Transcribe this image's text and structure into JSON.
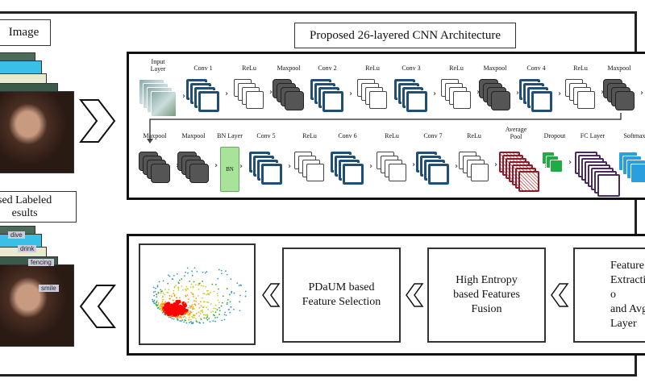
{
  "input_image": {
    "label": "Image"
  },
  "cnn_title": "Proposed 26-layered CNN Architecture",
  "labeled_results": {
    "label": "sed Labeled\nesults",
    "tags": [
      "dive",
      "drink",
      "fencing",
      "smile"
    ]
  },
  "top_row": [
    {
      "label": "Input\nLayer",
      "type": "input"
    },
    {
      "label": "Conv 1",
      "type": "conv"
    },
    {
      "label": "ReLu",
      "type": "relu"
    },
    {
      "label": "Maxpool",
      "type": "pool"
    },
    {
      "label": "Conv 2",
      "type": "conv"
    },
    {
      "label": "ReLu",
      "type": "relu"
    },
    {
      "label": "Conv 3",
      "type": "conv"
    },
    {
      "label": "ReLu",
      "type": "relu"
    },
    {
      "label": "Maxpool",
      "type": "pool"
    },
    {
      "label": "Conv 4",
      "type": "conv"
    },
    {
      "label": "ReLu",
      "type": "relu"
    },
    {
      "label": "Maxpool",
      "type": "pool"
    }
  ],
  "bottom_row": [
    {
      "label": "Maxpool",
      "type": "pool"
    },
    {
      "label": "Maxpool",
      "type": "pool"
    },
    {
      "label": "BN Layer",
      "type": "bn",
      "inner": "BN"
    },
    {
      "label": "Conv 5",
      "type": "conv"
    },
    {
      "label": "ReLu",
      "type": "relu"
    },
    {
      "label": "Conv 6",
      "type": "conv"
    },
    {
      "label": "ReLu",
      "type": "relu"
    },
    {
      "label": "Conv 7",
      "type": "conv"
    },
    {
      "label": "ReLu",
      "type": "relu"
    },
    {
      "label": "Average\nPool",
      "type": "avg"
    },
    {
      "label": "Dropout",
      "type": "drop"
    },
    {
      "label": "FC Layer",
      "type": "fc"
    },
    {
      "label": "Softmax",
      "type": "soft"
    }
  ],
  "pipeline": {
    "feature_selection": "PDaUM based\nFeature Selection",
    "fusion": "High Entropy\nbased Features\nFusion",
    "extraction": "Feature\nExtraction o\nand Avg\nLayer"
  },
  "colors": {
    "conv": "#1f4e79",
    "pool": "#555555",
    "bn": "#a8e39a",
    "avg": "#8b1a2b",
    "drop": "#22aa44",
    "fc": "#4a2a5e",
    "soft": "#2a9fe0"
  }
}
